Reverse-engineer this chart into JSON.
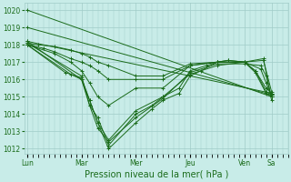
{
  "bg_color": "#c8ece8",
  "plot_bg_color": "#c8ece8",
  "grid_color": "#a0ccc8",
  "line_color": "#1a6b1a",
  "xlabel": "Pression niveau de la mer( hPa )",
  "xlabel_fontsize": 7,
  "yticks": [
    1012,
    1013,
    1014,
    1015,
    1016,
    1017,
    1018,
    1019,
    1020
  ],
  "xtick_labels": [
    "Lun",
    "Mar",
    "Mer",
    "Jeu",
    "Ven",
    "Sa"
  ],
  "xtick_positions": [
    0,
    1,
    2,
    3,
    4,
    4.5
  ],
  "ylim": [
    1011.7,
    1020.4
  ],
  "xlim": [
    -0.05,
    4.8
  ],
  "lines": [
    {
      "x": [
        0.0,
        4.5
      ],
      "y": [
        1020.0,
        1015.0
      ]
    },
    {
      "x": [
        0.0,
        4.5
      ],
      "y": [
        1019.0,
        1015.1
      ]
    },
    {
      "x": [
        0.0,
        1.0,
        1.15,
        1.3,
        1.5,
        2.0,
        2.3,
        2.5,
        2.8,
        3.0,
        3.2,
        3.5,
        3.7,
        4.0,
        4.35,
        4.5
      ],
      "y": [
        1018.2,
        1016.0,
        1014.8,
        1013.5,
        1012.0,
        1013.5,
        1014.3,
        1014.8,
        1015.2,
        1016.2,
        1016.5,
        1017.0,
        1017.1,
        1017.0,
        1017.1,
        1015.3
      ]
    },
    {
      "x": [
        0.0,
        1.0,
        1.15,
        1.3,
        1.5,
        2.0,
        2.3,
        2.5,
        2.8,
        3.0,
        3.3,
        3.5,
        3.7,
        4.0,
        4.35,
        4.5
      ],
      "y": [
        1018.1,
        1016.2,
        1014.5,
        1013.8,
        1012.2,
        1014.0,
        1014.5,
        1015.0,
        1015.5,
        1016.5,
        1016.8,
        1017.0,
        1017.1,
        1017.0,
        1017.2,
        1014.8
      ]
    },
    {
      "x": [
        0.0,
        0.8,
        1.0,
        1.15,
        1.3,
        1.5,
        2.0,
        2.5,
        3.0,
        3.5,
        4.0,
        4.3,
        4.4,
        4.5
      ],
      "y": [
        1018.0,
        1016.3,
        1016.0,
        1014.5,
        1013.2,
        1012.4,
        1013.8,
        1014.9,
        1016.4,
        1016.9,
        1016.9,
        1016.8,
        1016.2,
        1015.0
      ]
    },
    {
      "x": [
        0.0,
        0.7,
        1.0,
        1.15,
        1.3,
        1.5,
        2.0,
        2.5,
        3.0,
        3.5,
        4.0,
        4.3,
        4.4,
        4.5
      ],
      "y": [
        1018.0,
        1016.4,
        1016.1,
        1014.8,
        1013.5,
        1012.5,
        1014.2,
        1015.0,
        1016.3,
        1016.8,
        1017.0,
        1016.6,
        1015.8,
        1015.0
      ]
    },
    {
      "x": [
        0.0,
        0.5,
        0.8,
        1.0,
        1.15,
        1.3,
        1.5,
        2.0,
        2.5,
        3.0,
        3.5,
        4.0,
        4.2,
        4.4,
        4.5
      ],
      "y": [
        1018.0,
        1017.5,
        1017.0,
        1016.5,
        1015.8,
        1015.0,
        1014.5,
        1015.5,
        1015.5,
        1016.8,
        1017.0,
        1017.0,
        1016.5,
        1015.5,
        1015.2
      ]
    },
    {
      "x": [
        0.0,
        0.3,
        0.5,
        0.8,
        1.0,
        1.15,
        1.3,
        1.5,
        2.0,
        2.5,
        3.0,
        3.5,
        4.0,
        4.2,
        4.4,
        4.5
      ],
      "y": [
        1018.0,
        1017.8,
        1017.6,
        1017.2,
        1017.0,
        1016.8,
        1016.5,
        1016.0,
        1016.0,
        1016.0,
        1016.8,
        1017.0,
        1017.0,
        1016.5,
        1015.3,
        1015.1
      ]
    },
    {
      "x": [
        0.0,
        0.2,
        0.5,
        0.8,
        1.0,
        1.15,
        1.3,
        1.5,
        2.0,
        2.5,
        3.0,
        3.5,
        4.0,
        4.2,
        4.4,
        4.5
      ],
      "y": [
        1018.1,
        1018.0,
        1017.9,
        1017.7,
        1017.5,
        1017.3,
        1017.0,
        1016.8,
        1016.2,
        1016.2,
        1016.9,
        1017.0,
        1017.0,
        1016.4,
        1015.2,
        1015.0
      ]
    },
    {
      "x": [
        0.0,
        4.5
      ],
      "y": [
        1018.2,
        1015.2
      ]
    }
  ]
}
